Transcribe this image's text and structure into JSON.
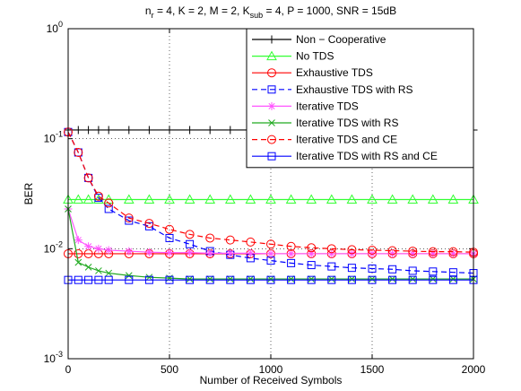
{
  "chart_data": {
    "type": "line",
    "title": "n_r = 4, K = 2, M = 2, K_sub = 4, P = 1000, SNR = 15dB",
    "xlabel": "Number of Received Symbols",
    "ylabel": "BER",
    "x": [
      0,
      50,
      100,
      150,
      200,
      300,
      400,
      500,
      600,
      700,
      800,
      900,
      1000,
      1100,
      1200,
      1300,
      1400,
      1500,
      1600,
      1700,
      1800,
      1900,
      2000
    ],
    "series": [
      {
        "name": "Non − Cooperative",
        "color": "#000000",
        "marker": "+",
        "linestyle": "-",
        "values": [
          0.12,
          0.12,
          0.12,
          0.12,
          0.12,
          0.12,
          0.12,
          0.12,
          0.12,
          0.12,
          0.12,
          0.12,
          0.12,
          0.12,
          0.12,
          0.12,
          0.12,
          0.12,
          0.12,
          0.12,
          0.12,
          0.12,
          0.12
        ]
      },
      {
        "name": "No TDS",
        "color": "#33ff33",
        "marker": "^",
        "linestyle": "-",
        "values": [
          0.028,
          0.028,
          0.028,
          0.028,
          0.028,
          0.028,
          0.028,
          0.028,
          0.028,
          0.028,
          0.028,
          0.028,
          0.028,
          0.028,
          0.028,
          0.028,
          0.028,
          0.028,
          0.028,
          0.028,
          0.028,
          0.028,
          0.028
        ]
      },
      {
        "name": "Exhaustive TDS",
        "color": "#ff0000",
        "marker": "o",
        "linestyle": "-",
        "values": [
          0.009,
          0.009,
          0.009,
          0.009,
          0.009,
          0.009,
          0.009,
          0.009,
          0.009,
          0.009,
          0.009,
          0.009,
          0.009,
          0.009,
          0.009,
          0.009,
          0.009,
          0.009,
          0.009,
          0.009,
          0.009,
          0.009,
          0.009
        ]
      },
      {
        "name": "Exhaustive TDS with RS",
        "color": "#0000ff",
        "marker": "s",
        "linestyle": "--",
        "values": [
          0.115,
          0.075,
          0.044,
          0.029,
          0.023,
          0.018,
          0.016,
          0.0125,
          0.011,
          0.0095,
          0.0088,
          0.0082,
          0.0078,
          0.0074,
          0.0071,
          0.0069,
          0.0067,
          0.0066,
          0.0065,
          0.0063,
          0.0062,
          0.0061,
          0.006
        ]
      },
      {
        "name": "Iterative TDS",
        "color": "#ff55ff",
        "marker": "*",
        "linestyle": "-",
        "values": [
          0.023,
          0.012,
          0.0105,
          0.01,
          0.0097,
          0.0095,
          0.0093,
          0.0092,
          0.0092,
          0.0091,
          0.0091,
          0.0091,
          0.009,
          0.009,
          0.009,
          0.009,
          0.009,
          0.009,
          0.009,
          0.009,
          0.009,
          0.009,
          0.009
        ]
      },
      {
        "name": "Iterative TDS with RS",
        "color": "#22aa22",
        "marker": "x",
        "linestyle": "-",
        "values": [
          0.023,
          0.0075,
          0.0068,
          0.0063,
          0.006,
          0.0057,
          0.0055,
          0.0054,
          0.0053,
          0.0053,
          0.0053,
          0.0053,
          0.0053,
          0.0053,
          0.0053,
          0.0053,
          0.0053,
          0.0053,
          0.0053,
          0.0053,
          0.0053,
          0.0053,
          0.0053
        ]
      },
      {
        "name": "Iterative TDS and CE",
        "color": "#ff0000",
        "marker": "o",
        "linestyle": "--",
        "values": [
          0.115,
          0.075,
          0.044,
          0.03,
          0.026,
          0.019,
          0.017,
          0.015,
          0.0135,
          0.0125,
          0.012,
          0.0115,
          0.011,
          0.0105,
          0.0102,
          0.01,
          0.0098,
          0.0097,
          0.0096,
          0.0095,
          0.0094,
          0.0094,
          0.0093
        ]
      },
      {
        "name": "Iterative TDS with RS and CE",
        "color": "#0000ff",
        "marker": "s",
        "linestyle": "-",
        "values": [
          0.0052,
          0.0052,
          0.0052,
          0.0052,
          0.0052,
          0.0052,
          0.0052,
          0.0052,
          0.0052,
          0.0052,
          0.0052,
          0.0052,
          0.0052,
          0.0052,
          0.0052,
          0.0052,
          0.0052,
          0.0052,
          0.0052,
          0.0052,
          0.0052,
          0.0052,
          0.0052
        ]
      }
    ],
    "xlim": [
      0,
      2000
    ],
    "xticks": [
      0,
      500,
      1000,
      1500,
      2000
    ],
    "ylim": [
      0.001,
      1
    ],
    "yticks": [
      {
        "value": 0.001,
        "label": "10^-3"
      },
      {
        "value": 0.01,
        "label": "10^-2"
      },
      {
        "value": 0.1,
        "label": "10^-1"
      },
      {
        "value": 1,
        "label": "10^0"
      }
    ],
    "yscale": "log",
    "grid": true,
    "legend": "upper right"
  }
}
